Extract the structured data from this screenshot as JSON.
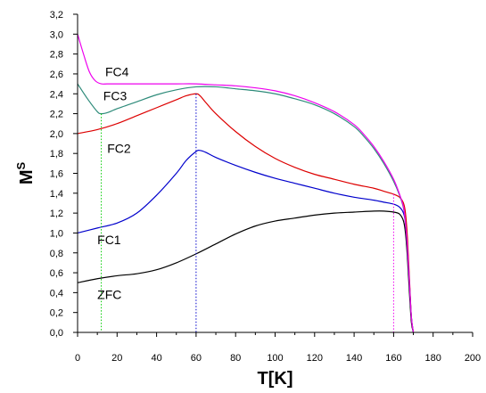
{
  "chart_data": {
    "type": "line",
    "xlabel": "T[K]",
    "ylabel_base": "M",
    "ylabel_sup": "S",
    "xlim": [
      0,
      200
    ],
    "ylim": [
      0.0,
      3.2
    ],
    "xticks": [
      0,
      20,
      40,
      60,
      80,
      100,
      120,
      140,
      160,
      180,
      200
    ],
    "xtick_labels": [
      "0",
      "20",
      "40",
      "60",
      "80",
      "100",
      "120",
      "140",
      "160",
      "180",
      "200"
    ],
    "yticks": [
      0.0,
      0.2,
      0.4,
      0.6,
      0.8,
      1.0,
      1.2,
      1.4,
      1.6,
      1.8,
      2.0,
      2.2,
      2.4,
      2.6,
      2.8,
      3.0,
      3.2
    ],
    "ytick_labels": [
      "0,0",
      "0,2",
      "0,4",
      "0,6",
      "0,8",
      "1,0",
      "1,2",
      "1,4",
      "1,6",
      "1,8",
      "2,0",
      "2,2",
      "2,4",
      "2,6",
      "2,8",
      "3,0",
      "3,2"
    ],
    "grid": false,
    "series": [
      {
        "name": "ZFC",
        "color": "#000000",
        "label_at": [
          10,
          0.38
        ],
        "x": [
          0,
          10,
          20,
          30,
          40,
          50,
          60,
          70,
          80,
          90,
          100,
          110,
          120,
          130,
          140,
          150,
          155,
          160,
          163,
          165,
          166,
          167,
          168,
          169,
          170
        ],
        "y": [
          0.5,
          0.54,
          0.57,
          0.59,
          0.63,
          0.7,
          0.79,
          0.89,
          0.99,
          1.07,
          1.12,
          1.15,
          1.18,
          1.2,
          1.21,
          1.22,
          1.22,
          1.21,
          1.19,
          1.12,
          1.0,
          0.75,
          0.4,
          0.1,
          0.0
        ]
      },
      {
        "name": "FC1",
        "color": "#0000cc",
        "label_at": [
          10,
          0.93
        ],
        "x": [
          0,
          10,
          20,
          30,
          40,
          50,
          55,
          60,
          62,
          65,
          70,
          80,
          90,
          100,
          110,
          120,
          130,
          140,
          150,
          155,
          160,
          163,
          165,
          166,
          167,
          168,
          169,
          170
        ],
        "y": [
          1.0,
          1.05,
          1.1,
          1.2,
          1.38,
          1.6,
          1.73,
          1.82,
          1.83,
          1.81,
          1.76,
          1.68,
          1.61,
          1.55,
          1.5,
          1.45,
          1.4,
          1.36,
          1.33,
          1.31,
          1.29,
          1.26,
          1.2,
          1.1,
          0.85,
          0.5,
          0.15,
          0.0
        ]
      },
      {
        "name": "FC2",
        "color": "#dd0000",
        "label_at": [
          15,
          1.85
        ],
        "x": [
          0,
          10,
          20,
          30,
          40,
          50,
          55,
          60,
          62,
          65,
          70,
          80,
          90,
          100,
          110,
          120,
          130,
          140,
          150,
          155,
          160,
          163,
          165,
          166,
          167,
          168,
          169,
          170
        ],
        "y": [
          2.0,
          2.04,
          2.1,
          2.18,
          2.26,
          2.34,
          2.38,
          2.4,
          2.38,
          2.31,
          2.2,
          2.02,
          1.87,
          1.75,
          1.66,
          1.59,
          1.54,
          1.49,
          1.45,
          1.42,
          1.39,
          1.36,
          1.3,
          1.2,
          0.95,
          0.55,
          0.15,
          0.0
        ]
      },
      {
        "name": "FC3",
        "color": "#2e8b7a",
        "label_at": [
          13,
          2.38
        ],
        "x": [
          0,
          5,
          10,
          12,
          15,
          20,
          30,
          40,
          50,
          60,
          70,
          80,
          90,
          100,
          110,
          120,
          130,
          140,
          145,
          150,
          155,
          160,
          163,
          165,
          166,
          167,
          168,
          169,
          170
        ],
        "y": [
          2.5,
          2.35,
          2.22,
          2.2,
          2.21,
          2.25,
          2.32,
          2.39,
          2.44,
          2.47,
          2.47,
          2.45,
          2.43,
          2.4,
          2.35,
          2.29,
          2.2,
          2.07,
          1.97,
          1.85,
          1.7,
          1.52,
          1.38,
          1.25,
          1.1,
          0.85,
          0.5,
          0.15,
          0.0
        ]
      },
      {
        "name": "FC4",
        "color": "#ee00ee",
        "label_at": [
          14,
          2.62
        ],
        "x": [
          0,
          3,
          6,
          9,
          12,
          15,
          20,
          30,
          40,
          50,
          60,
          70,
          80,
          90,
          100,
          110,
          120,
          130,
          140,
          145,
          150,
          155,
          160,
          163,
          165,
          166,
          167,
          168,
          169,
          170
        ],
        "y": [
          3.0,
          2.8,
          2.62,
          2.53,
          2.5,
          2.5,
          2.5,
          2.5,
          2.5,
          2.5,
          2.5,
          2.49,
          2.48,
          2.46,
          2.43,
          2.38,
          2.31,
          2.22,
          2.09,
          1.99,
          1.87,
          1.72,
          1.54,
          1.39,
          1.26,
          1.1,
          0.85,
          0.5,
          0.15,
          0.0
        ]
      }
    ],
    "vlines": [
      {
        "x": 12,
        "ymax": 2.2,
        "color": "#00cc00"
      },
      {
        "x": 60,
        "ymax": 2.4,
        "color": "#0000cc"
      },
      {
        "x": 160,
        "ymax": 1.39,
        "color": "#ee00ee"
      }
    ]
  }
}
